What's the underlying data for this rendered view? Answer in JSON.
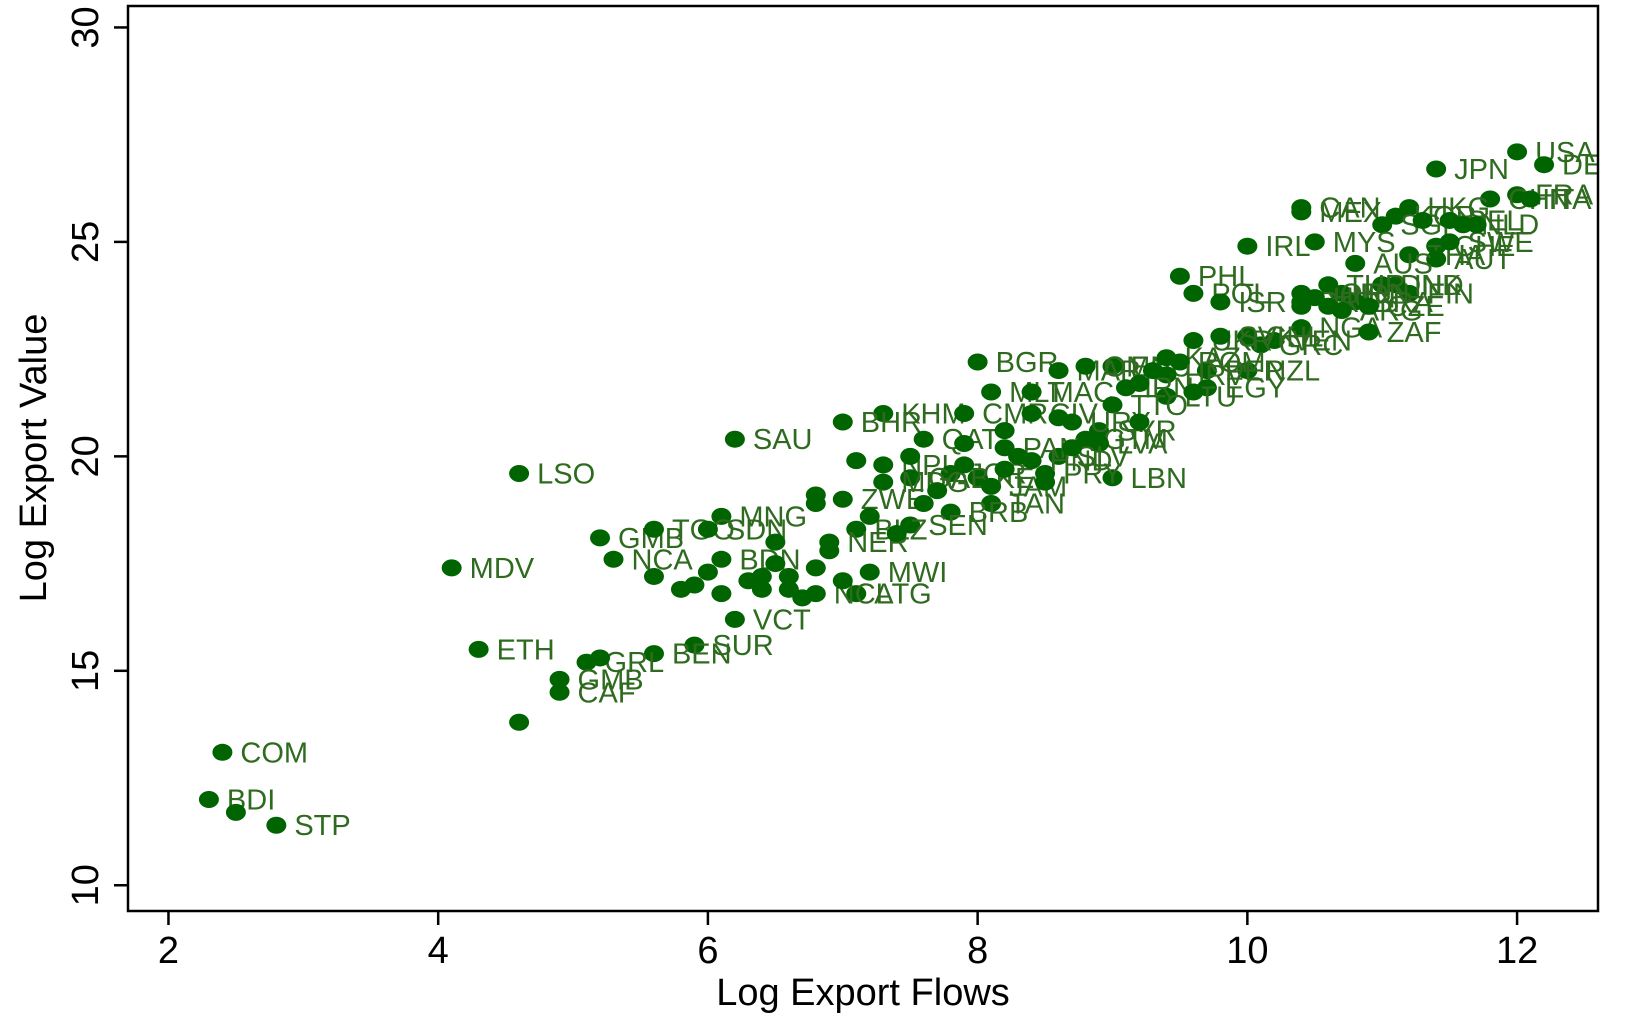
{
  "chart_data": {
    "type": "scatter",
    "title": "",
    "xlabel": "Log Export Flows",
    "ylabel": "Log Export Value",
    "xlim": [
      1.7,
      12.6
    ],
    "ylim": [
      9.4,
      30.5
    ],
    "xticks": [
      2,
      4,
      6,
      8,
      10,
      12
    ],
    "yticks": [
      10,
      15,
      20,
      25,
      30
    ],
    "grid": false,
    "legend": "none",
    "marker_color": "#006400",
    "label_color": "#2e6b1f",
    "points": [
      {
        "label": "USA",
        "x": 12.0,
        "y": 27.1
      },
      {
        "label": "DEU",
        "x": 12.2,
        "y": 26.8
      },
      {
        "label": "JPN",
        "x": 11.4,
        "y": 26.7
      },
      {
        "label": "FRA",
        "x": 12.0,
        "y": 26.1
      },
      {
        "label": "CHN",
        "x": 11.8,
        "y": 26.0
      },
      {
        "label": "ITA",
        "x": 12.1,
        "y": 26.0
      },
      {
        "label": "CAN",
        "x": 10.4,
        "y": 25.8
      },
      {
        "label": "HKG",
        "x": 11.2,
        "y": 25.8
      },
      {
        "label": "MEX",
        "x": 10.4,
        "y": 25.7
      },
      {
        "label": "KOR",
        "x": 11.1,
        "y": 25.6
      },
      {
        "label": "SGP",
        "x": 11.0,
        "y": 25.4
      },
      {
        "label": "NLD",
        "x": 11.6,
        "y": 25.4
      },
      {
        "label": "BEL",
        "x": 11.5,
        "y": 25.5
      },
      {
        "label": "IRL",
        "x": 10.0,
        "y": 24.9
      },
      {
        "label": "MYS",
        "x": 10.5,
        "y": 25.0
      },
      {
        "label": "CHE",
        "x": 11.4,
        "y": 24.9
      },
      {
        "label": "THA",
        "x": 11.2,
        "y": 24.7
      },
      {
        "label": "AUT",
        "x": 11.4,
        "y": 24.6
      },
      {
        "label": "SWE",
        "x": 11.5,
        "y": 25.0
      },
      {
        "label": "AUS",
        "x": 10.8,
        "y": 24.5
      },
      {
        "label": "PHL",
        "x": 9.5,
        "y": 24.2
      },
      {
        "label": "POL",
        "x": 9.6,
        "y": 23.8
      },
      {
        "label": "ISR",
        "x": 9.8,
        "y": 23.6
      },
      {
        "label": "DNK",
        "x": 11.0,
        "y": 24.0
      },
      {
        "label": "FIN",
        "x": 11.2,
        "y": 23.8
      },
      {
        "label": "IND",
        "x": 11.1,
        "y": 24.0
      },
      {
        "label": "IDN",
        "x": 10.7,
        "y": 23.8
      },
      {
        "label": "NOR",
        "x": 10.4,
        "y": 23.8
      },
      {
        "label": "TUR",
        "x": 10.6,
        "y": 24.0
      },
      {
        "label": "BRA",
        "x": 10.8,
        "y": 23.6
      },
      {
        "label": "PRT",
        "x": 10.4,
        "y": 23.6
      },
      {
        "label": "HUN",
        "x": 10.5,
        "y": 23.7
      },
      {
        "label": "NGA",
        "x": 10.4,
        "y": 23.0
      },
      {
        "label": "ZAF",
        "x": 10.9,
        "y": 22.9
      },
      {
        "label": "ARG",
        "x": 10.7,
        "y": 23.4
      },
      {
        "label": "CZE",
        "x": 10.9,
        "y": 23.5
      },
      {
        "label": "CHL",
        "x": 10.0,
        "y": 22.8
      },
      {
        "label": "VEN",
        "x": 10.2,
        "y": 22.7
      },
      {
        "label": "GRC",
        "x": 10.1,
        "y": 22.6
      },
      {
        "label": "NZL",
        "x": 10.0,
        "y": 22.0
      },
      {
        "label": "BGR",
        "x": 8.0,
        "y": 22.2
      },
      {
        "label": "ECU",
        "x": 9.0,
        "y": 22.1
      },
      {
        "label": "MAR",
        "x": 8.6,
        "y": 22.0
      },
      {
        "label": "OMN",
        "x": 8.8,
        "y": 22.1
      },
      {
        "label": "KAZ",
        "x": 9.4,
        "y": 22.3
      },
      {
        "label": "UKR",
        "x": 9.6,
        "y": 22.7
      },
      {
        "label": "PER",
        "x": 9.7,
        "y": 22.0
      },
      {
        "label": "ROM",
        "x": 9.5,
        "y": 22.2
      },
      {
        "label": "SVK",
        "x": 9.8,
        "y": 22.8
      },
      {
        "label": "HRV",
        "x": 9.4,
        "y": 21.9
      },
      {
        "label": "EGY",
        "x": 9.7,
        "y": 21.6
      },
      {
        "label": "LTU",
        "x": 9.4,
        "y": 21.4
      },
      {
        "label": "MLT",
        "x": 8.1,
        "y": 21.5
      },
      {
        "label": "MAC",
        "x": 8.4,
        "y": 21.5
      },
      {
        "label": "IRN",
        "x": 9.1,
        "y": 21.6
      },
      {
        "label": "KHM",
        "x": 7.3,
        "y": 21.0
      },
      {
        "label": "BHR",
        "x": 7.0,
        "y": 20.8
      },
      {
        "label": "CMR",
        "x": 7.9,
        "y": 21.0
      },
      {
        "label": "CIV",
        "x": 8.4,
        "y": 21.0
      },
      {
        "label": "SYR",
        "x": 8.9,
        "y": 20.6
      },
      {
        "label": "TTO",
        "x": 9.0,
        "y": 21.2
      },
      {
        "label": "URY",
        "x": 8.7,
        "y": 20.8
      },
      {
        "label": "GTM",
        "x": 8.8,
        "y": 20.4
      },
      {
        "label": "SAU",
        "x": 6.2,
        "y": 20.4
      },
      {
        "label": "QAT",
        "x": 7.6,
        "y": 20.4
      },
      {
        "label": "LVA",
        "x": 8.9,
        "y": 20.3
      },
      {
        "label": "SLV",
        "x": 8.6,
        "y": 20.0
      },
      {
        "label": "PAN",
        "x": 8.2,
        "y": 20.2
      },
      {
        "label": "NPL",
        "x": 7.3,
        "y": 19.8
      },
      {
        "label": "LSO",
        "x": 4.6,
        "y": 19.6
      },
      {
        "label": "JOR",
        "x": 7.8,
        "y": 19.6
      },
      {
        "label": "KEN",
        "x": 8.0,
        "y": 19.5
      },
      {
        "label": "LBN",
        "x": 9.0,
        "y": 19.5
      },
      {
        "label": "PRY",
        "x": 8.5,
        "y": 19.6
      },
      {
        "label": "HND",
        "x": 8.4,
        "y": 19.9
      },
      {
        "label": "GAB",
        "x": 7.5,
        "y": 19.5
      },
      {
        "label": "MDG",
        "x": 7.3,
        "y": 19.4
      },
      {
        "label": "JAM",
        "x": 8.1,
        "y": 19.3
      },
      {
        "label": "ZWE",
        "x": 7.0,
        "y": 19.0
      },
      {
        "label": "TAN",
        "x": 8.1,
        "y": 18.9
      },
      {
        "label": "BRB",
        "x": 7.8,
        "y": 18.7
      },
      {
        "label": "MNG",
        "x": 6.1,
        "y": 18.6
      },
      {
        "label": "SEN",
        "x": 7.5,
        "y": 18.4
      },
      {
        "label": "BLZ",
        "x": 7.1,
        "y": 18.3
      },
      {
        "label": "GMB",
        "x": 5.2,
        "y": 18.1
      },
      {
        "label": "TGO",
        "x": 5.6,
        "y": 18.3
      },
      {
        "label": "SDN",
        "x": 6.0,
        "y": 18.3
      },
      {
        "label": "NER",
        "x": 6.9,
        "y": 18.0
      },
      {
        "label": "NCA",
        "x": 5.3,
        "y": 17.6
      },
      {
        "label": "BDN",
        "x": 6.1,
        "y": 17.6
      },
      {
        "label": "MWI",
        "x": 7.2,
        "y": 17.3
      },
      {
        "label": "ATG",
        "x": 7.1,
        "y": 16.8
      },
      {
        "label": "NCL",
        "x": 6.8,
        "y": 16.8
      },
      {
        "label": "MDV",
        "x": 4.1,
        "y": 17.4
      },
      {
        "label": "VCT",
        "x": 6.2,
        "y": 16.2
      },
      {
        "label": "SUR",
        "x": 5.9,
        "y": 15.6
      },
      {
        "label": "ETH",
        "x": 4.3,
        "y": 15.5
      },
      {
        "label": "BEN",
        "x": 5.6,
        "y": 15.4
      },
      {
        "label": "GRL",
        "x": 5.1,
        "y": 15.2
      },
      {
        "label": "GMB",
        "x": 4.9,
        "y": 14.8
      },
      {
        "label": "CAF",
        "x": 4.9,
        "y": 14.5
      },
      {
        "label": "COM",
        "x": 2.4,
        "y": 13.1
      },
      {
        "label": "BDI",
        "x": 2.3,
        "y": 12.0
      },
      {
        "label": "STP",
        "x": 2.8,
        "y": 11.4
      },
      {
        "label": "",
        "x": 4.6,
        "y": 13.8
      },
      {
        "label": "",
        "x": 2.5,
        "y": 11.7
      },
      {
        "label": "",
        "x": 5.2,
        "y": 15.3
      },
      {
        "label": "",
        "x": 5.6,
        "y": 17.2
      },
      {
        "label": "",
        "x": 5.8,
        "y": 16.9
      },
      {
        "label": "",
        "x": 6.0,
        "y": 17.3
      },
      {
        "label": "",
        "x": 6.1,
        "y": 16.8
      },
      {
        "label": "",
        "x": 6.3,
        "y": 17.1
      },
      {
        "label": "",
        "x": 6.4,
        "y": 16.9
      },
      {
        "label": "",
        "x": 6.5,
        "y": 17.5
      },
      {
        "label": "",
        "x": 6.6,
        "y": 17.2
      },
      {
        "label": "",
        "x": 6.7,
        "y": 16.7
      },
      {
        "label": "",
        "x": 6.8,
        "y": 17.4
      },
      {
        "label": "",
        "x": 6.9,
        "y": 17.8
      },
      {
        "label": "",
        "x": 7.0,
        "y": 17.1
      },
      {
        "label": "",
        "x": 6.5,
        "y": 18.0
      },
      {
        "label": "",
        "x": 6.8,
        "y": 18.9
      },
      {
        "label": "",
        "x": 6.8,
        "y": 19.1
      },
      {
        "label": "",
        "x": 7.2,
        "y": 18.6
      },
      {
        "label": "",
        "x": 7.4,
        "y": 18.2
      },
      {
        "label": "",
        "x": 7.6,
        "y": 18.9
      },
      {
        "label": "",
        "x": 7.7,
        "y": 19.2
      },
      {
        "label": "",
        "x": 7.9,
        "y": 19.8
      },
      {
        "label": "",
        "x": 8.2,
        "y": 19.7
      },
      {
        "label": "",
        "x": 8.3,
        "y": 20.0
      },
      {
        "label": "",
        "x": 8.5,
        "y": 19.4
      },
      {
        "label": "",
        "x": 8.7,
        "y": 20.2
      },
      {
        "label": "",
        "x": 9.2,
        "y": 21.7
      },
      {
        "label": "",
        "x": 9.3,
        "y": 22.0
      },
      {
        "label": "",
        "x": 9.6,
        "y": 21.5
      },
      {
        "label": "",
        "x": 7.1,
        "y": 19.9
      },
      {
        "label": "",
        "x": 7.5,
        "y": 20.0
      },
      {
        "label": "",
        "x": 6.6,
        "y": 16.9
      },
      {
        "label": "",
        "x": 6.4,
        "y": 17.2
      },
      {
        "label": "",
        "x": 5.9,
        "y": 17.0
      },
      {
        "label": "",
        "x": 10.4,
        "y": 23.5
      },
      {
        "label": "",
        "x": 10.6,
        "y": 23.5
      },
      {
        "label": "",
        "x": 11.3,
        "y": 25.5
      },
      {
        "label": "",
        "x": 11.7,
        "y": 25.4
      },
      {
        "label": "",
        "x": 9.2,
        "y": 20.8
      },
      {
        "label": "",
        "x": 8.2,
        "y": 20.6
      },
      {
        "label": "",
        "x": 8.6,
        "y": 20.9
      },
      {
        "label": "",
        "x": 7.9,
        "y": 20.3
      }
    ]
  }
}
